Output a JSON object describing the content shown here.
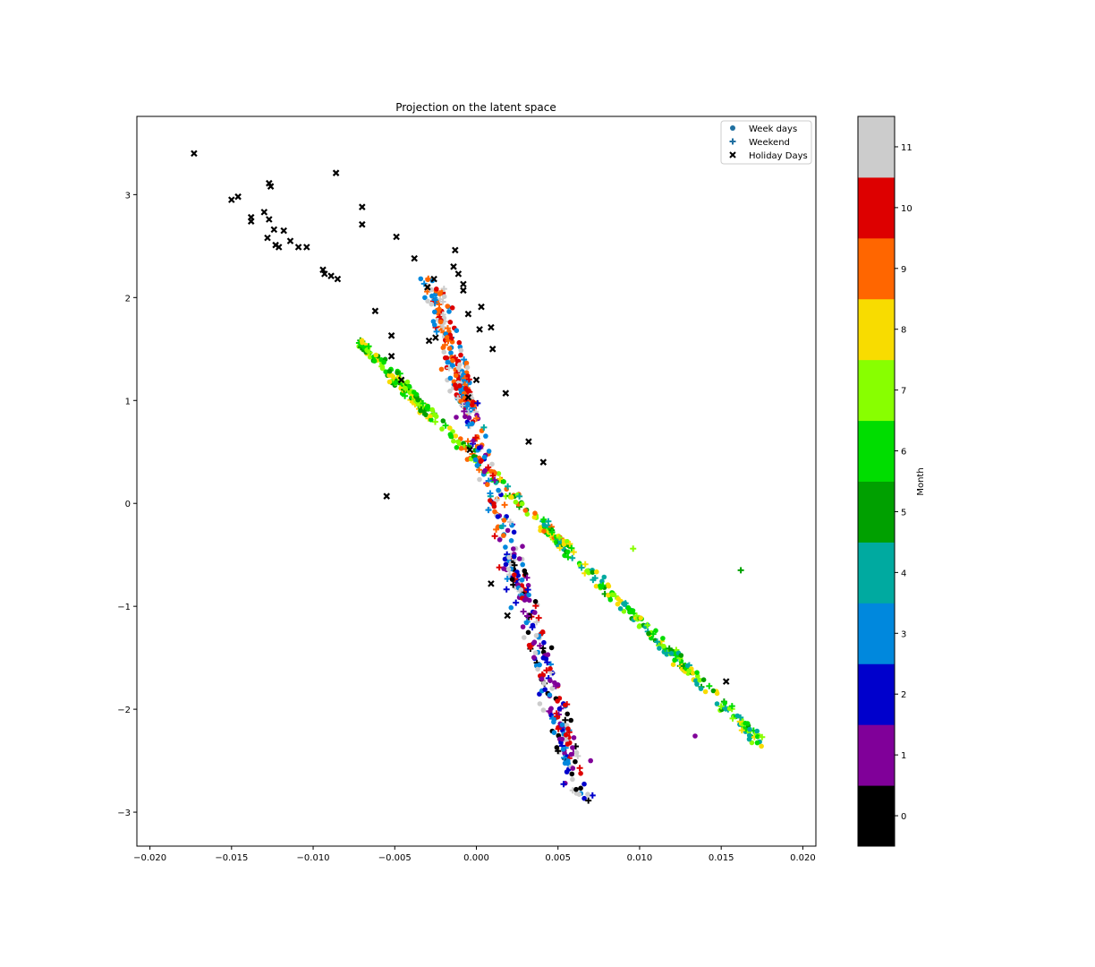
{
  "chart_data": {
    "type": "scatter",
    "title": "Projection on the latent space",
    "xlabel": "",
    "ylabel": "",
    "xlim": [
      -0.0208,
      0.0208
    ],
    "ylim": [
      -3.33,
      3.76
    ],
    "x_ticks": [
      -0.02,
      -0.015,
      -0.01,
      -0.005,
      0.0,
      0.005,
      0.01,
      0.015,
      0.02
    ],
    "x_tick_labels": [
      "−0.020",
      "−0.015",
      "−0.010",
      "−0.005",
      "0.000",
      "0.005",
      "0.010",
      "0.015",
      "0.020"
    ],
    "y_ticks": [
      -3,
      -2,
      -1,
      0,
      1,
      2,
      3
    ],
    "y_tick_labels": [
      "−3",
      "−2",
      "−1",
      "0",
      "1",
      "2",
      "3"
    ],
    "grid": false,
    "legend": {
      "placement": "top-right",
      "entries": [
        {
          "label": "Week days",
          "marker": "circle"
        },
        {
          "label": "Weekend",
          "marker": "plus"
        },
        {
          "label": "Holiday Days",
          "marker": "x"
        }
      ]
    },
    "colorbar": {
      "label": "Month",
      "ticks": [
        0,
        1,
        2,
        3,
        4,
        5,
        6,
        7,
        8,
        9,
        10,
        11
      ],
      "tick_labels": [
        "0",
        "1",
        "2",
        "3",
        "4",
        "5",
        "6",
        "7",
        "8",
        "9",
        "10",
        "11"
      ],
      "colors": [
        "#000000",
        "#800099",
        "#0000cc",
        "#0088dd",
        "#00aaa0",
        "#00a000",
        "#00dd00",
        "#88ff00",
        "#f8dc00",
        "#ff6600",
        "#dd0000",
        "#cccccc"
      ]
    },
    "holiday_points": [
      [
        -0.0173,
        3.4
      ],
      [
        -0.015,
        2.95
      ],
      [
        -0.0146,
        2.98
      ],
      [
        -0.0138,
        2.74
      ],
      [
        -0.0138,
        2.78
      ],
      [
        -0.013,
        2.83
      ],
      [
        -0.0128,
        2.58
      ],
      [
        -0.0127,
        2.76
      ],
      [
        -0.0127,
        3.11
      ],
      [
        -0.0126,
        3.08
      ],
      [
        -0.0124,
        2.66
      ],
      [
        -0.0123,
        2.51
      ],
      [
        -0.0121,
        2.49
      ],
      [
        -0.0118,
        2.65
      ],
      [
        -0.0114,
        2.55
      ],
      [
        -0.0109,
        2.49
      ],
      [
        -0.0104,
        2.49
      ],
      [
        -0.0094,
        2.27
      ],
      [
        -0.0093,
        2.23
      ],
      [
        -0.0089,
        2.21
      ],
      [
        -0.0085,
        2.18
      ],
      [
        -0.0086,
        3.21
      ],
      [
        -0.007,
        2.88
      ],
      [
        -0.007,
        2.71
      ],
      [
        -0.0062,
        1.87
      ],
      [
        -0.0055,
        0.07
      ],
      [
        -0.0052,
        1.63
      ],
      [
        -0.0052,
        1.43
      ],
      [
        -0.0049,
        2.59
      ],
      [
        -0.0046,
        1.2
      ],
      [
        -0.0038,
        2.38
      ],
      [
        -0.003,
        2.1
      ],
      [
        -0.0029,
        1.58
      ],
      [
        -0.0026,
        2.18
      ],
      [
        -0.0025,
        1.61
      ],
      [
        -0.0014,
        2.3
      ],
      [
        -0.0013,
        2.46
      ],
      [
        -0.0011,
        2.23
      ],
      [
        -0.0008,
        2.13
      ],
      [
        -0.0008,
        2.07
      ],
      [
        -0.0005,
        1.84
      ],
      [
        -0.0005,
        1.03
      ],
      [
        -0.0004,
        0.52
      ],
      [
        0.0,
        1.2
      ],
      [
        0.0002,
        1.69
      ],
      [
        0.0003,
        1.91
      ],
      [
        0.0009,
        1.71
      ],
      [
        0.001,
        1.5
      ],
      [
        0.0018,
        1.07
      ],
      [
        0.0019,
        -1.09
      ],
      [
        0.0009,
        -0.78
      ],
      [
        0.0032,
        0.6
      ],
      [
        0.0041,
        0.4
      ],
      [
        0.0153,
        -1.73
      ]
    ],
    "clusters": {
      "weekday_branch_A": "upper-left cluster from (-0.0075, 1.8) through (0.0, 0.4) continuing along the long diagonal to (0.0175, -2.3), months 5-8 dominant",
      "weekday_branch_B": "steep branch from (-0.003, 2.3) through (0.003, 0.0) down to (0.0065, -3.0), months 0-3 and 9-11 dominant"
    },
    "series": [
      {
        "name": "Week days"
      },
      {
        "name": "Weekend"
      },
      {
        "name": "Holiday Days"
      }
    ]
  }
}
